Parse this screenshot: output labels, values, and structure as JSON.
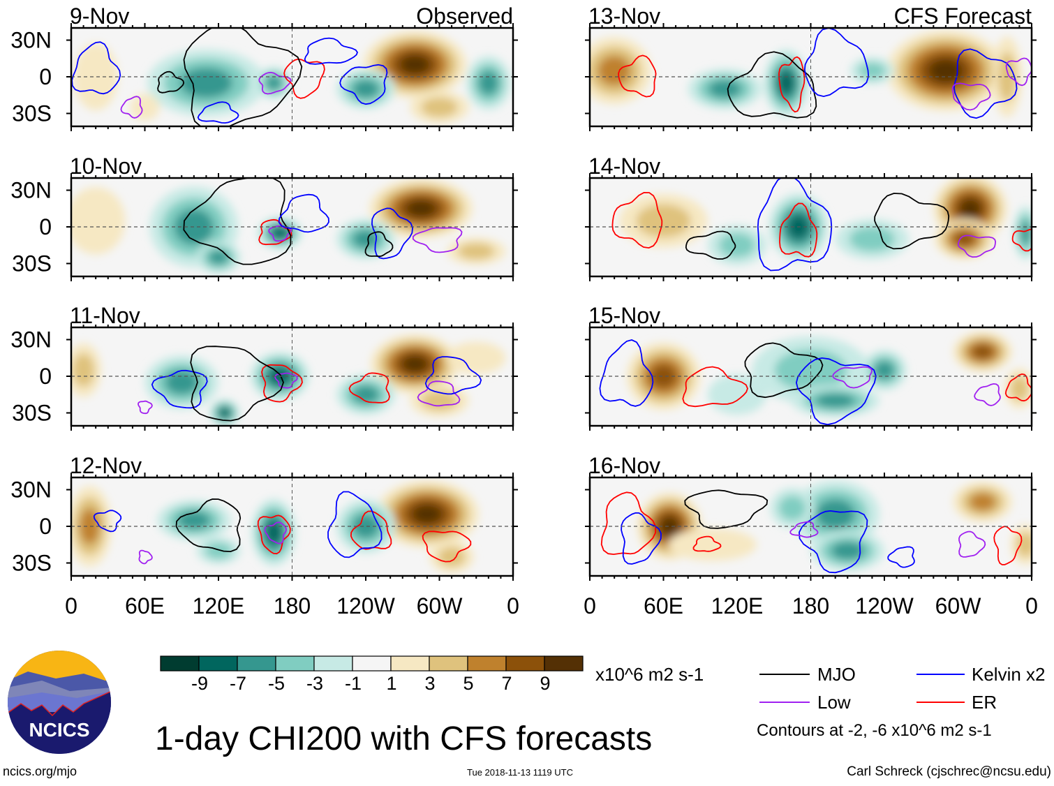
{
  "title": "1-day CHI200 with CFS forecasts",
  "footer": {
    "site": "ncics.org/mjo",
    "timestamp": "Tue 2018-11-13 1119 UTC",
    "author": "Carl Schreck (cjschrec@ncsu.edu)"
  },
  "logo": {
    "text": "NCICS"
  },
  "colors": {
    "levels": [
      "#003c30",
      "#01665e",
      "#35978f",
      "#80cdc1",
      "#c7eae5",
      "#f5f5f5",
      "#f6e8c3",
      "#dfc27d",
      "#bf812d",
      "#8c510a",
      "#543005"
    ],
    "mjo": "#000000",
    "kelvin": "#0000ff",
    "low": "#a020f0",
    "er": "#ff0000"
  },
  "chart_data": {
    "type": "heatmap",
    "variable": "CHI200 anomaly",
    "units": "x10^6 m2 s-1",
    "colorbar_ticks": [
      "-9",
      "-7",
      "-5",
      "-3",
      "-1",
      "1",
      "3",
      "5",
      "7",
      "9"
    ],
    "x_ticks": [
      "0",
      "60E",
      "120E",
      "180",
      "120W",
      "60W",
      "0"
    ],
    "y_ticks": [
      "30N",
      "0",
      "30S"
    ],
    "columns": [
      {
        "label": "Observed",
        "panels": [
          "9-Nov",
          "10-Nov",
          "11-Nov",
          "12-Nov"
        ]
      },
      {
        "label": "CFS Forecast",
        "panels": [
          "13-Nov",
          "14-Nov",
          "15-Nov",
          "16-Nov"
        ]
      }
    ],
    "legend": [
      {
        "label": "MJO",
        "color": "#000000"
      },
      {
        "label": "Kelvin x2",
        "color": "#0000ff"
      },
      {
        "label": "Low",
        "color": "#a020f0"
      },
      {
        "label": "ER",
        "color": "#ff0000"
      }
    ],
    "contour_note": "Contours at -2, -6 x10^6 m2 s-1"
  }
}
